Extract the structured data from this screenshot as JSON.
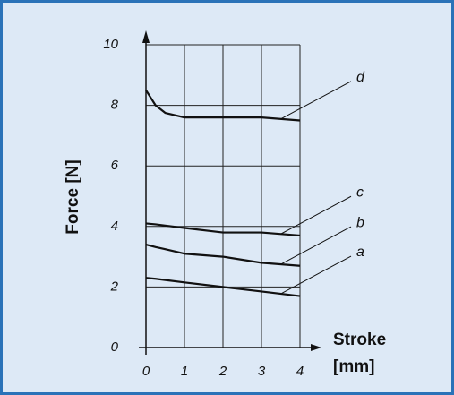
{
  "chart_data": {
    "type": "line",
    "y_label": "Force [N]",
    "x_label": [
      "Stroke",
      "[mm]"
    ],
    "x": [
      0,
      0.25,
      0.5,
      1,
      2,
      3,
      4
    ],
    "series": [
      {
        "name": "a",
        "color": "#111111",
        "values": [
          2.3,
          2.27,
          2.23,
          2.15,
          2.0,
          1.85,
          1.7
        ]
      },
      {
        "name": "b",
        "color": "#111111",
        "values": [
          3.4,
          3.32,
          3.25,
          3.1,
          3.0,
          2.8,
          2.7
        ]
      },
      {
        "name": "c",
        "color": "#111111",
        "values": [
          4.1,
          4.07,
          4.03,
          3.95,
          3.8,
          3.8,
          3.7
        ]
      },
      {
        "name": "d",
        "color": "#111111",
        "values": [
          8.5,
          8.0,
          7.75,
          7.6,
          7.6,
          7.6,
          7.5
        ]
      }
    ],
    "xlim": [
      0,
      4
    ],
    "ylim": [
      0,
      10
    ],
    "xticks": [
      0,
      1,
      2,
      3,
      4
    ],
    "yticks": [
      0,
      2,
      4,
      6,
      8,
      10
    ],
    "grid": true
  }
}
